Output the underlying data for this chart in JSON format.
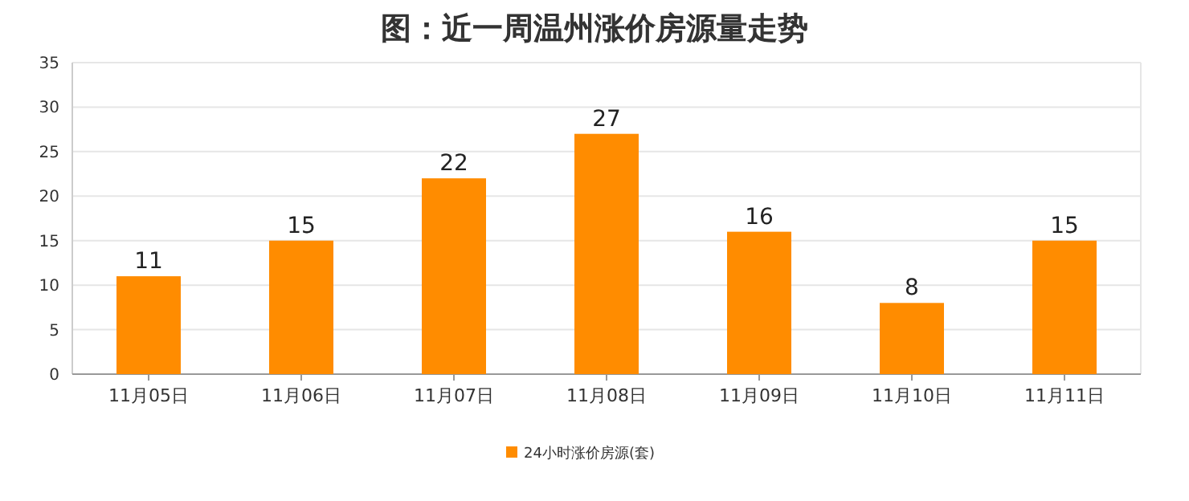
{
  "chart_data": {
    "type": "bar",
    "title": "图：近一周温州涨价房源量走势",
    "categories": [
      "11月05日",
      "11月06日",
      "11月07日",
      "11月08日",
      "11月09日",
      "11月10日",
      "11月11日"
    ],
    "series": [
      {
        "name": "24小时涨价房源(套)",
        "color": "#ff8c00",
        "values": [
          11,
          15,
          22,
          27,
          16,
          8,
          15
        ]
      }
    ],
    "ylim": [
      0,
      35
    ],
    "yticks": [
      0,
      5,
      10,
      15,
      20,
      25,
      30,
      35
    ],
    "grid": "y",
    "data_labels": true,
    "legend": "bottom"
  }
}
